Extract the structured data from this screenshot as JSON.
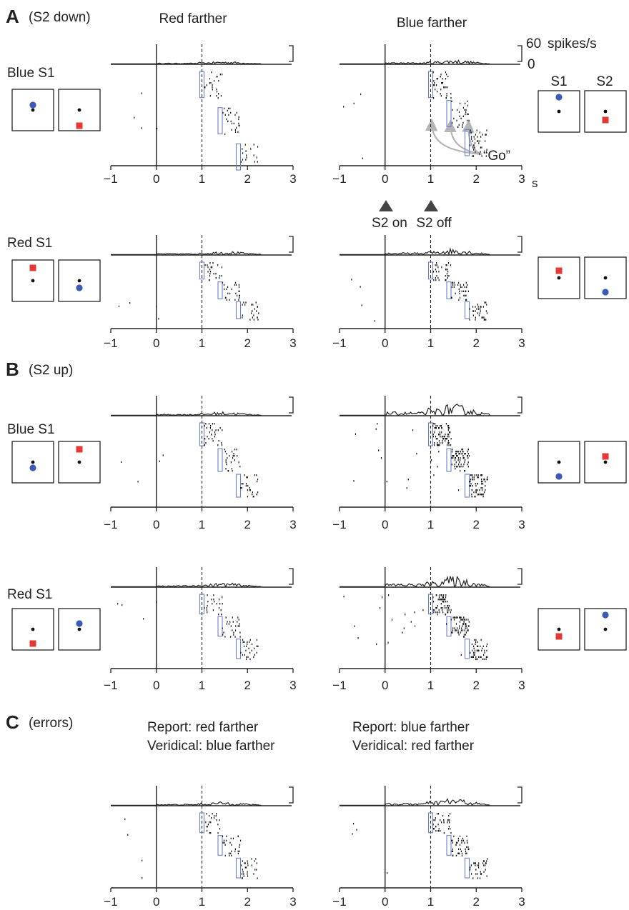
{
  "sections": [
    {
      "letter": "A",
      "subtitle": "(S2 down)"
    },
    {
      "letter": "B",
      "subtitle": "(S2 up)"
    },
    {
      "letter": "C",
      "subtitle": "(errors)"
    }
  ],
  "column_titles": {
    "left": "Red farther",
    "right": "Blue farther"
  },
  "row_labels": {
    "blue_s1": "Blue S1",
    "red_s1": "Red S1"
  },
  "stimulus_headers": {
    "s1": "S1",
    "s2": "S2"
  },
  "scale_bar": {
    "top": "60",
    "unit": "spikes/s",
    "bottom": "0"
  },
  "time_unit": "s",
  "event_markers": {
    "s2_on": "S2 on",
    "s2_off": "S2 off",
    "go": "“Go”"
  },
  "error_titles": {
    "left_report": "Report: red farther",
    "left_veridical": "Veridical: blue farther",
    "right_report": "Report: blue farther",
    "right_veridical": "Veridical: red farther"
  },
  "colors": {
    "blue_marker": "#3a5bb5",
    "red_marker": "#e53935",
    "go_bracket": "#6a7fd0",
    "axis": "#222222",
    "arrow": "#b5b5b5"
  },
  "chart_data": {
    "type": "raster",
    "x_ticks": [
      "−1",
      "0",
      "1",
      "2",
      "3"
    ],
    "xlim": [
      -1,
      3
    ],
    "scale_bar_spikes_per_s": 60,
    "go_times": [
      1.0,
      1.4,
      1.8
    ],
    "panels": [
      {
        "section": "A",
        "row": "Blue S1",
        "column": "Red farther",
        "s2_vs_s1": "red lower"
      },
      {
        "section": "A",
        "row": "Blue S1",
        "column": "Blue farther",
        "s2_vs_s1": "red lower"
      },
      {
        "section": "A",
        "row": "Red S1",
        "column": "Red farther",
        "s2_vs_s1": "blue lower"
      },
      {
        "section": "A",
        "row": "Red S1",
        "column": "Blue farther",
        "s2_vs_s1": "blue lower"
      },
      {
        "section": "B",
        "row": "Blue S1",
        "column": "Red farther",
        "s2_vs_s1": "red higher"
      },
      {
        "section": "B",
        "row": "Blue S1",
        "column": "Blue farther",
        "s2_vs_s1": "red higher"
      },
      {
        "section": "B",
        "row": "Red S1",
        "column": "Red farther",
        "s2_vs_s1": "blue higher"
      },
      {
        "section": "B",
        "row": "Red S1",
        "column": "Blue farther",
        "s2_vs_s1": "blue higher"
      },
      {
        "section": "C",
        "row": "errors",
        "column": "Report: red farther / Veridical: blue farther"
      },
      {
        "section": "C",
        "row": "errors",
        "column": "Report: blue farther / Veridical: red farther"
      }
    ]
  }
}
